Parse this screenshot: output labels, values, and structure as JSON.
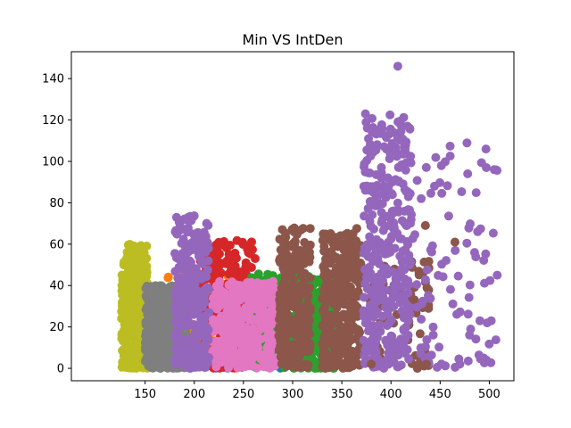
{
  "chart_data": {
    "type": "scatter",
    "title": "Min VS IntDen",
    "xlabel": "",
    "ylabel": "",
    "xlim": [
      75,
      525
    ],
    "ylim": [
      -6,
      153
    ],
    "xticks": [
      150,
      200,
      250,
      300,
      350,
      400,
      450,
      500
    ],
    "yticks": [
      0,
      20,
      40,
      60,
      80,
      100,
      120,
      140
    ],
    "grid": false,
    "legend": "none",
    "marker_radius": 5,
    "series": [
      {
        "color": "#bcbd22",
        "clusters": [
          {
            "x": [
              126,
              152
            ],
            "y": [
              0,
              60
            ],
            "n": 420
          }
        ]
      },
      {
        "color": "#1f77b4",
        "clusters": [
          {
            "x": [
              160,
              290
            ],
            "y": [
              0,
              12
            ],
            "n": 80
          }
        ]
      },
      {
        "color": "#ff7f0e",
        "clusters": [
          {
            "x": [
              160,
              235
            ],
            "y": [
              0,
              46
            ],
            "n": 90
          }
        ]
      },
      {
        "color": "#7f7f7f",
        "clusters": [
          {
            "x": [
              150,
              195
            ],
            "y": [
              0,
              40
            ],
            "n": 480
          }
        ]
      },
      {
        "color": "#d62728",
        "clusters": [
          {
            "x": [
              205,
              262
            ],
            "y": [
              0,
              62
            ],
            "n": 300
          }
        ]
      },
      {
        "color": "#2ca02c",
        "clusters": [
          {
            "x": [
              258,
              345
            ],
            "y": [
              0,
              46
            ],
            "n": 520
          }
        ]
      },
      {
        "color": "#e377c2",
        "clusters": [
          {
            "x": [
              218,
              285
            ],
            "y": [
              0,
              42
            ],
            "n": 350
          }
        ]
      },
      {
        "color": "#8c564b",
        "clusters": [
          {
            "x": [
              285,
              318
            ],
            "y": [
              0,
              68
            ],
            "n": 240
          },
          {
            "x": [
              330,
              370
            ],
            "y": [
              0,
              68
            ],
            "n": 320
          },
          {
            "x": [
              372,
              442
            ],
            "y": [
              0,
              52
            ],
            "n": 70
          }
        ]
      },
      {
        "color": "#9467bd",
        "clusters": [
          {
            "x": [
              180,
              215
            ],
            "y": [
              0,
              74
            ],
            "n": 260
          },
          {
            "x": [
              372,
              420
            ],
            "y": [
              0,
              123
            ],
            "n": 380
          },
          {
            "x": [
              420,
              508
            ],
            "y": [
              0,
              110
            ],
            "n": 90
          }
        ]
      }
    ],
    "points": [
      {
        "x": 407,
        "y": 146,
        "color": "#9467bd"
      },
      {
        "x": 505,
        "y": 96,
        "color": "#9467bd"
      },
      {
        "x": 497,
        "y": 97,
        "color": "#9467bd"
      },
      {
        "x": 478,
        "y": 94,
        "color": "#9467bd"
      },
      {
        "x": 508,
        "y": 45,
        "color": "#9467bd"
      },
      {
        "x": 502,
        "y": 23,
        "color": "#9467bd"
      },
      {
        "x": 497,
        "y": 4,
        "color": "#9467bd"
      },
      {
        "x": 481,
        "y": 19,
        "color": "#9467bd"
      },
      {
        "x": 470,
        "y": 2,
        "color": "#9467bd"
      },
      {
        "x": 485,
        "y": 56,
        "color": "#9467bd"
      },
      {
        "x": 465,
        "y": 61,
        "color": "#8c564b"
      },
      {
        "x": 436,
        "y": 2,
        "color": "#8c564b"
      },
      {
        "x": 435,
        "y": 69,
        "color": "#8c564b"
      },
      {
        "x": 380,
        "y": 2,
        "color": "#8c564b"
      },
      {
        "x": 374,
        "y": 123,
        "color": "#9467bd"
      }
    ]
  }
}
